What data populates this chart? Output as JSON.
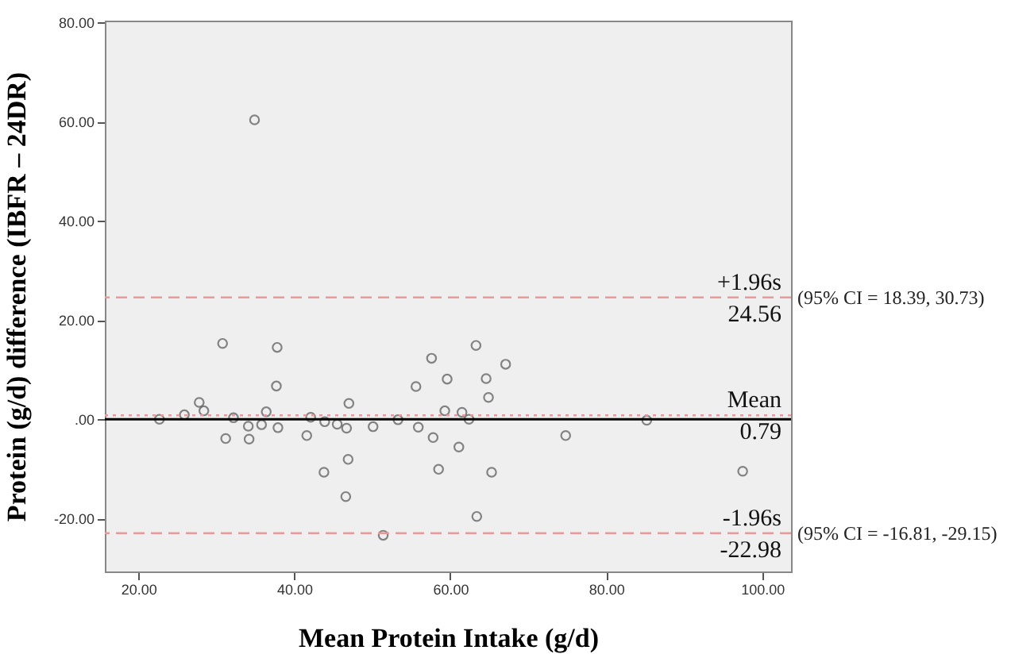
{
  "chart_data": {
    "type": "scatter",
    "xlabel": "Mean Protein Intake (g/d)",
    "ylabel": "Protein (g/d) difference (IBFR – 24DR)",
    "x": [
      34.9,
      22.7,
      25.9,
      27.8,
      28.4,
      30.8,
      31.2,
      32.2,
      34.1,
      34.2,
      35.8,
      36.4,
      37.7,
      37.8,
      37.9,
      41.6,
      42.1,
      43.9,
      43.8,
      45.5,
      46.7,
      47.0,
      46.9,
      46.6,
      50.1,
      51.4,
      53.3,
      55.6,
      55.9,
      57.6,
      57.8,
      58.5,
      59.3,
      59.6,
      61.1,
      61.5,
      62.4,
      63.3,
      63.4,
      64.6,
      64.9,
      65.3,
      67.1,
      74.8,
      85.2,
      97.5
    ],
    "series": [
      {
        "color": "#555555",
        "values": [
          60.4,
          0.0,
          0.9,
          3.4,
          1.7,
          15.3,
          -3.9,
          0.3,
          -1.4,
          -4.0,
          -1.1,
          1.5,
          6.7,
          14.5,
          -1.7,
          -3.3,
          0.4,
          -0.5,
          -10.7,
          -1.0,
          -1.8,
          3.2,
          -8.1,
          -15.6,
          -1.5,
          -23.4,
          -0.1,
          6.6,
          -1.6,
          12.3,
          -3.7,
          -10.1,
          1.7,
          8.1,
          -5.6,
          1.4,
          0.0,
          14.9,
          -19.6,
          8.2,
          4.4,
          -10.7,
          11.1,
          -3.3,
          -0.2,
          -10.5
        ]
      }
    ],
    "marker": "circle",
    "xlim": [
      15.7,
      103.7
    ],
    "ylim": [
      -30.7,
      80.4
    ],
    "xticks": [
      {
        "value": 20,
        "label": "20.00"
      },
      {
        "value": 40,
        "label": "40.00"
      },
      {
        "value": 60,
        "label": "60.00"
      },
      {
        "value": 80,
        "label": "80.00"
      },
      {
        "value": 100,
        "label": "100.00"
      }
    ],
    "yticks": [
      {
        "value": -20,
        "label": "-20.00"
      },
      {
        "value": 0,
        "label": ".00"
      },
      {
        "value": 20,
        "label": "20.00"
      },
      {
        "value": 40,
        "label": "40.00"
      },
      {
        "value": 60,
        "label": "60.00"
      },
      {
        "value": 80,
        "label": "80.00"
      }
    ],
    "grid": false,
    "ref_lines": [
      {
        "axis": "y",
        "value": 24.56,
        "label": "+1.96s\n24.56",
        "color": "#e89a9a",
        "line_style": "dashed"
      },
      {
        "axis": "y",
        "value": 0.79,
        "label": "Mean\n0.79",
        "color": "#e89a9a",
        "line_style": "dotted"
      },
      {
        "axis": "y",
        "value": 0,
        "color": "#000000",
        "line_style": "solid"
      },
      {
        "axis": "y",
        "value": -22.98,
        "label": "-1.96s\n-22.98",
        "color": "#e89a9a",
        "line_style": "dashed"
      }
    ],
    "annotations": [
      "(95% CI = 18.39, 30.73)",
      "(95% CI = -16.81, -29.15)"
    ]
  }
}
